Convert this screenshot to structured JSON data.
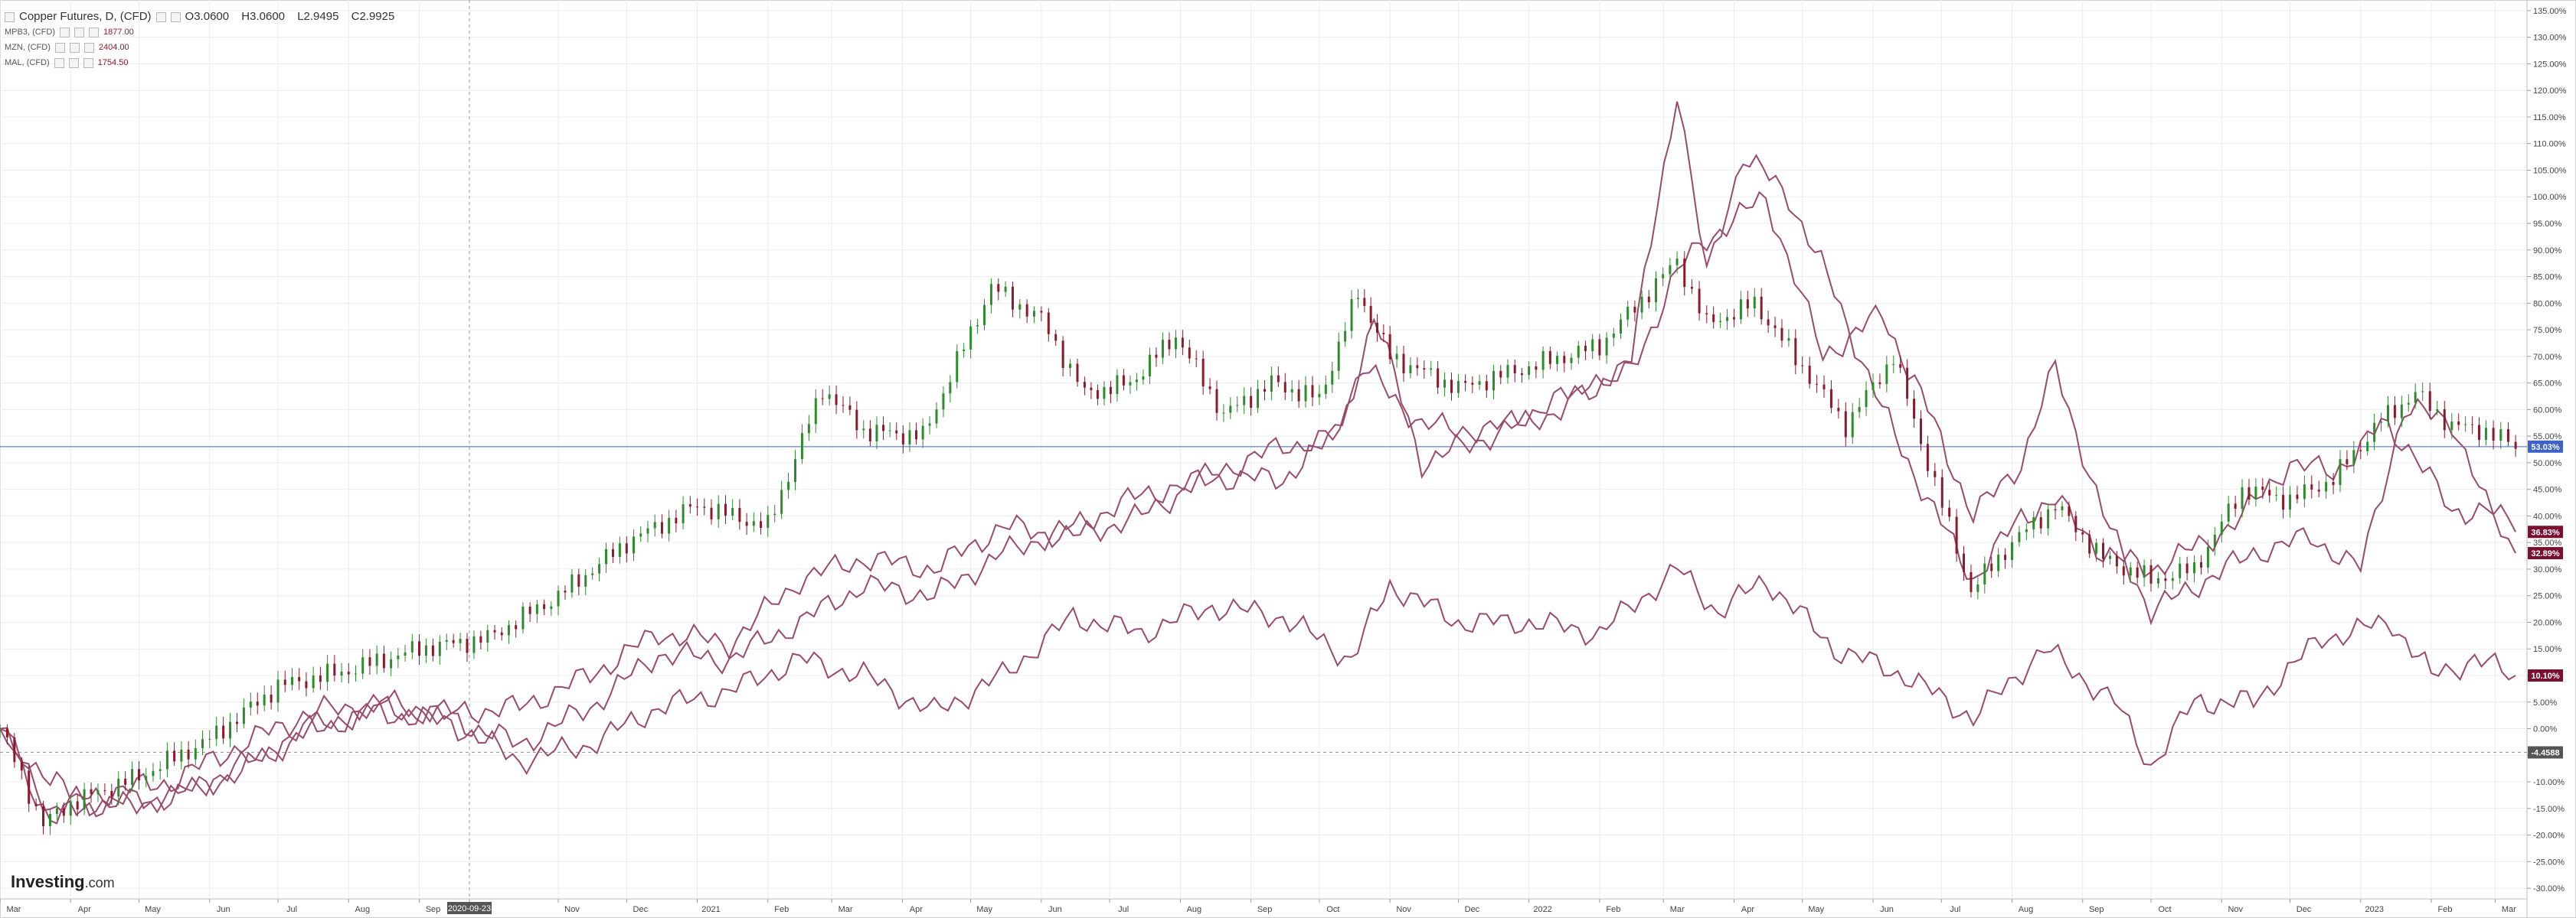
{
  "chart_data": {
    "type": "line",
    "title": "Copper Futures, D, (CFD)",
    "ohlc": {
      "O": "3.0600",
      "H": "3.0600",
      "L": "2.9495",
      "C": "2.9925"
    },
    "yunit": "%",
    "ylim": [
      -32,
      137
    ],
    "yticks": [
      -30,
      -25,
      -20,
      -15,
      -10,
      -5,
      0,
      5,
      10,
      15,
      20,
      25,
      30,
      35,
      40,
      45,
      50,
      55,
      60,
      65,
      70,
      75,
      80,
      85,
      90,
      95,
      100,
      105,
      110,
      115,
      120,
      125,
      130,
      135
    ],
    "ytick_labels": [
      "-30.00%",
      "-25.00%",
      "-20.00%",
      "-15.00%",
      "-10.00%",
      "-5.00%",
      "0.00%",
      "5.00%",
      "10.00%",
      "15.00%",
      "20.00%",
      "25.00%",
      "30.00%",
      "35.00%",
      "40.00%",
      "45.00%",
      "50.00%",
      "55.00%",
      "60.00%",
      "65.00%",
      "70.00%",
      "75.00%",
      "80.00%",
      "85.00%",
      "90.00%",
      "95.00%",
      "100.00%",
      "105.00%",
      "110.00%",
      "115.00%",
      "120.00%",
      "125.00%",
      "130.00%",
      "135.00%"
    ],
    "xlim": [
      "2020-03-01",
      "2023-03-15"
    ],
    "xticks": [
      {
        "date": "2020-03-01",
        "label": "Mar"
      },
      {
        "date": "2020-04-01",
        "label": "Apr"
      },
      {
        "date": "2020-05-01",
        "label": "May"
      },
      {
        "date": "2020-06-01",
        "label": "Jun"
      },
      {
        "date": "2020-07-01",
        "label": "Jul"
      },
      {
        "date": "2020-08-01",
        "label": "Aug"
      },
      {
        "date": "2020-09-01",
        "label": "Sep"
      },
      {
        "date": "2020-09-23",
        "label": "2020-09-23"
      },
      {
        "date": "2020-11-01",
        "label": "Nov"
      },
      {
        "date": "2020-12-01",
        "label": "Dec"
      },
      {
        "date": "2021-01-01",
        "label": "2021"
      },
      {
        "date": "2021-02-01",
        "label": "Feb"
      },
      {
        "date": "2021-03-01",
        "label": "Mar"
      },
      {
        "date": "2021-04-01",
        "label": "Apr"
      },
      {
        "date": "2021-05-01",
        "label": "May"
      },
      {
        "date": "2021-06-01",
        "label": "Jun"
      },
      {
        "date": "2021-07-01",
        "label": "Jul"
      },
      {
        "date": "2021-08-01",
        "label": "Aug"
      },
      {
        "date": "2021-09-01",
        "label": "Sep"
      },
      {
        "date": "2021-10-01",
        "label": "Oct"
      },
      {
        "date": "2021-11-01",
        "label": "Nov"
      },
      {
        "date": "2021-12-01",
        "label": "Dec"
      },
      {
        "date": "2022-01-01",
        "label": "2022"
      },
      {
        "date": "2022-02-01",
        "label": "Feb"
      },
      {
        "date": "2022-03-01",
        "label": "Mar"
      },
      {
        "date": "2022-04-01",
        "label": "Apr"
      },
      {
        "date": "2022-05-01",
        "label": "May"
      },
      {
        "date": "2022-06-01",
        "label": "Jun"
      },
      {
        "date": "2022-07-01",
        "label": "Jul"
      },
      {
        "date": "2022-08-01",
        "label": "Aug"
      },
      {
        "date": "2022-09-01",
        "label": "Sep"
      },
      {
        "date": "2022-10-01",
        "label": "Oct"
      },
      {
        "date": "2022-11-01",
        "label": "Nov"
      },
      {
        "date": "2022-12-01",
        "label": "Dec"
      },
      {
        "date": "2023-01-01",
        "label": "2023"
      },
      {
        "date": "2023-02-01",
        "label": "Feb"
      },
      {
        "date": "2023-03-01",
        "label": "Mar"
      }
    ],
    "crosshair": {
      "date": "2020-09-23",
      "value": -4.4588,
      "label": "-4.4588"
    },
    "reference_line": {
      "value": 53.03,
      "label": "53.03%",
      "color": "#3d63c9"
    },
    "grid": true,
    "legend": "top-left",
    "copper_candles": [
      {
        "date": "2020-03-01",
        "value": 0
      },
      {
        "date": "2020-03-20",
        "value": -18
      },
      {
        "date": "2020-04-01",
        "value": -14
      },
      {
        "date": "2020-05-01",
        "value": -9
      },
      {
        "date": "2020-06-01",
        "value": -2
      },
      {
        "date": "2020-07-01",
        "value": 8
      },
      {
        "date": "2020-08-01",
        "value": 11
      },
      {
        "date": "2020-09-01",
        "value": 15
      },
      {
        "date": "2020-10-01",
        "value": 17
      },
      {
        "date": "2020-11-01",
        "value": 25
      },
      {
        "date": "2020-12-01",
        "value": 35
      },
      {
        "date": "2021-01-01",
        "value": 42
      },
      {
        "date": "2021-02-01",
        "value": 38
      },
      {
        "date": "2021-02-25",
        "value": 64
      },
      {
        "date": "2021-03-15",
        "value": 56
      },
      {
        "date": "2021-04-10",
        "value": 55
      },
      {
        "date": "2021-05-10",
        "value": 83
      },
      {
        "date": "2021-06-01",
        "value": 77
      },
      {
        "date": "2021-06-20",
        "value": 63
      },
      {
        "date": "2021-07-10",
        "value": 65
      },
      {
        "date": "2021-07-30",
        "value": 74
      },
      {
        "date": "2021-08-20",
        "value": 59
      },
      {
        "date": "2021-09-10",
        "value": 65
      },
      {
        "date": "2021-10-01",
        "value": 62
      },
      {
        "date": "2021-10-18",
        "value": 82
      },
      {
        "date": "2021-11-01",
        "value": 70
      },
      {
        "date": "2021-12-01",
        "value": 64
      },
      {
        "date": "2022-01-01",
        "value": 68
      },
      {
        "date": "2022-02-01",
        "value": 72
      },
      {
        "date": "2022-03-07",
        "value": 88
      },
      {
        "date": "2022-03-20",
        "value": 76
      },
      {
        "date": "2022-04-10",
        "value": 80
      },
      {
        "date": "2022-05-01",
        "value": 68
      },
      {
        "date": "2022-05-20",
        "value": 57
      },
      {
        "date": "2022-06-10",
        "value": 70
      },
      {
        "date": "2022-06-25",
        "value": 50
      },
      {
        "date": "2022-07-14",
        "value": 26
      },
      {
        "date": "2022-08-01",
        "value": 35
      },
      {
        "date": "2022-08-20",
        "value": 42
      },
      {
        "date": "2022-09-10",
        "value": 32
      },
      {
        "date": "2022-10-01",
        "value": 28
      },
      {
        "date": "2022-10-20",
        "value": 30
      },
      {
        "date": "2022-11-10",
        "value": 45
      },
      {
        "date": "2022-12-01",
        "value": 43
      },
      {
        "date": "2022-12-20",
        "value": 47
      },
      {
        "date": "2023-01-10",
        "value": 58
      },
      {
        "date": "2023-01-25",
        "value": 63
      },
      {
        "date": "2023-02-10",
        "value": 57
      },
      {
        "date": "2023-02-25",
        "value": 56
      },
      {
        "date": "2023-03-10",
        "value": 53
      }
    ],
    "series": [
      {
        "name": "MPB3, (CFD)",
        "value_label": "1877.00",
        "end_label": "36.83%",
        "points": [
          {
            "date": "2020-03-01",
            "value": 0
          },
          {
            "date": "2020-03-23",
            "value": -15
          },
          {
            "date": "2020-04-15",
            "value": -12
          },
          {
            "date": "2020-05-15",
            "value": -10
          },
          {
            "date": "2020-06-15",
            "value": -3
          },
          {
            "date": "2020-07-15",
            "value": 3
          },
          {
            "date": "2020-08-15",
            "value": 5
          },
          {
            "date": "2020-09-15",
            "value": 3
          },
          {
            "date": "2020-10-15",
            "value": 4
          },
          {
            "date": "2020-11-15",
            "value": 10
          },
          {
            "date": "2020-12-15",
            "value": 18
          },
          {
            "date": "2021-01-15",
            "value": 16
          },
          {
            "date": "2021-02-15",
            "value": 28
          },
          {
            "date": "2021-03-15",
            "value": 32
          },
          {
            "date": "2021-04-15",
            "value": 30
          },
          {
            "date": "2021-05-15",
            "value": 38
          },
          {
            "date": "2021-06-15",
            "value": 36
          },
          {
            "date": "2021-07-15",
            "value": 40
          },
          {
            "date": "2021-08-15",
            "value": 48
          },
          {
            "date": "2021-09-15",
            "value": 53
          },
          {
            "date": "2021-10-10",
            "value": 55
          },
          {
            "date": "2021-10-25",
            "value": 78
          },
          {
            "date": "2021-11-15",
            "value": 50
          },
          {
            "date": "2021-12-15",
            "value": 55
          },
          {
            "date": "2022-01-15",
            "value": 60
          },
          {
            "date": "2022-02-15",
            "value": 70
          },
          {
            "date": "2022-03-07",
            "value": 120
          },
          {
            "date": "2022-03-20",
            "value": 85
          },
          {
            "date": "2022-04-05",
            "value": 108
          },
          {
            "date": "2022-04-25",
            "value": 100
          },
          {
            "date": "2022-05-15",
            "value": 82
          },
          {
            "date": "2022-06-05",
            "value": 60
          },
          {
            "date": "2022-06-25",
            "value": 43
          },
          {
            "date": "2022-07-15",
            "value": 28
          },
          {
            "date": "2022-08-05",
            "value": 40
          },
          {
            "date": "2022-08-20",
            "value": 43
          },
          {
            "date": "2022-09-10",
            "value": 33
          },
          {
            "date": "2022-10-01",
            "value": 30
          },
          {
            "date": "2022-10-25",
            "value": 35
          },
          {
            "date": "2022-11-10",
            "value": 40
          },
          {
            "date": "2022-12-01",
            "value": 50
          },
          {
            "date": "2022-12-20",
            "value": 48
          },
          {
            "date": "2023-01-10",
            "value": 57
          },
          {
            "date": "2023-01-25",
            "value": 52
          },
          {
            "date": "2023-02-10",
            "value": 40
          },
          {
            "date": "2023-02-25",
            "value": 42
          },
          {
            "date": "2023-03-10",
            "value": 37
          }
        ]
      },
      {
        "name": "MZN, (CFD)",
        "value_label": "2404.00",
        "end_label": "32.89%",
        "points": [
          {
            "date": "2020-03-01",
            "value": 0
          },
          {
            "date": "2020-03-23",
            "value": -17
          },
          {
            "date": "2020-04-15",
            "value": -14
          },
          {
            "date": "2020-05-15",
            "value": -13
          },
          {
            "date": "2020-06-15",
            "value": -8
          },
          {
            "date": "2020-07-15",
            "value": 0
          },
          {
            "date": "2020-08-15",
            "value": 4
          },
          {
            "date": "2020-09-15",
            "value": 2
          },
          {
            "date": "2020-10-15",
            "value": -3
          },
          {
            "date": "2020-11-15",
            "value": 4
          },
          {
            "date": "2020-12-15",
            "value": 14
          },
          {
            "date": "2021-01-15",
            "value": 13
          },
          {
            "date": "2021-02-15",
            "value": 20
          },
          {
            "date": "2021-03-15",
            "value": 27
          },
          {
            "date": "2021-04-15",
            "value": 25
          },
          {
            "date": "2021-05-15",
            "value": 33
          },
          {
            "date": "2021-06-15",
            "value": 38
          },
          {
            "date": "2021-07-15",
            "value": 44
          },
          {
            "date": "2021-08-15",
            "value": 47
          },
          {
            "date": "2021-09-15",
            "value": 47
          },
          {
            "date": "2021-10-05",
            "value": 54
          },
          {
            "date": "2021-10-20",
            "value": 68
          },
          {
            "date": "2021-11-15",
            "value": 57
          },
          {
            "date": "2021-12-15",
            "value": 56
          },
          {
            "date": "2022-01-15",
            "value": 62
          },
          {
            "date": "2022-02-15",
            "value": 67
          },
          {
            "date": "2022-03-07",
            "value": 86
          },
          {
            "date": "2022-03-20",
            "value": 92
          },
          {
            "date": "2022-04-15",
            "value": 100
          },
          {
            "date": "2022-05-10",
            "value": 70
          },
          {
            "date": "2022-06-05",
            "value": 78
          },
          {
            "date": "2022-06-25",
            "value": 60
          },
          {
            "date": "2022-07-15",
            "value": 40
          },
          {
            "date": "2022-08-05",
            "value": 50
          },
          {
            "date": "2022-08-20",
            "value": 68
          },
          {
            "date": "2022-09-10",
            "value": 40
          },
          {
            "date": "2022-10-01",
            "value": 22
          },
          {
            "date": "2022-10-25",
            "value": 28
          },
          {
            "date": "2022-11-15",
            "value": 33
          },
          {
            "date": "2022-12-10",
            "value": 36
          },
          {
            "date": "2023-01-01",
            "value": 30
          },
          {
            "date": "2023-01-20",
            "value": 60
          },
          {
            "date": "2023-02-10",
            "value": 58
          },
          {
            "date": "2023-02-25",
            "value": 42
          },
          {
            "date": "2023-03-10",
            "value": 33
          }
        ]
      },
      {
        "name": "MAL, (CFD)",
        "value_label": "1754.50",
        "end_label": "10.10%",
        "points": [
          {
            "date": "2020-03-01",
            "value": 0
          },
          {
            "date": "2020-03-23",
            "value": -10
          },
          {
            "date": "2020-04-15",
            "value": -15
          },
          {
            "date": "2020-05-15",
            "value": -13
          },
          {
            "date": "2020-06-15",
            "value": -7
          },
          {
            "date": "2020-07-15",
            "value": 0
          },
          {
            "date": "2020-08-15",
            "value": 3
          },
          {
            "date": "2020-09-15",
            "value": 1
          },
          {
            "date": "2020-10-15",
            "value": -6
          },
          {
            "date": "2020-11-15",
            "value": -3
          },
          {
            "date": "2020-12-15",
            "value": 4
          },
          {
            "date": "2021-01-15",
            "value": 7
          },
          {
            "date": "2021-02-15",
            "value": 13
          },
          {
            "date": "2021-03-15",
            "value": 10
          },
          {
            "date": "2021-04-15",
            "value": 3
          },
          {
            "date": "2021-05-15",
            "value": 10
          },
          {
            "date": "2021-06-15",
            "value": 21
          },
          {
            "date": "2021-07-15",
            "value": 18
          },
          {
            "date": "2021-08-15",
            "value": 23
          },
          {
            "date": "2021-09-15",
            "value": 21
          },
          {
            "date": "2021-10-15",
            "value": 13
          },
          {
            "date": "2021-11-01",
            "value": 27
          },
          {
            "date": "2021-12-01",
            "value": 20
          },
          {
            "date": "2022-01-01",
            "value": 20
          },
          {
            "date": "2022-02-01",
            "value": 18
          },
          {
            "date": "2022-03-07",
            "value": 30
          },
          {
            "date": "2022-03-25",
            "value": 22
          },
          {
            "date": "2022-04-15",
            "value": 28
          },
          {
            "date": "2022-05-15",
            "value": 15
          },
          {
            "date": "2022-06-15",
            "value": 10
          },
          {
            "date": "2022-07-15",
            "value": 2
          },
          {
            "date": "2022-08-15",
            "value": 15
          },
          {
            "date": "2022-09-15",
            "value": 5
          },
          {
            "date": "2022-10-01",
            "value": -7
          },
          {
            "date": "2022-10-20",
            "value": 5
          },
          {
            "date": "2022-11-15",
            "value": 5
          },
          {
            "date": "2022-12-15",
            "value": 17
          },
          {
            "date": "2023-01-15",
            "value": 20
          },
          {
            "date": "2023-02-01",
            "value": 10
          },
          {
            "date": "2023-02-20",
            "value": 13
          },
          {
            "date": "2023-03-10",
            "value": 10
          }
        ]
      }
    ]
  },
  "colors": {
    "up": "#2e8b2e",
    "down": "#8b1a2b",
    "series": "#9a4a6a",
    "grid": "#ececec",
    "reference": "#3d63c9",
    "label_bg": "#7a1030",
    "neutral_bg": "#555555"
  },
  "brand": {
    "name": "Investing",
    "suffix": ".com"
  }
}
